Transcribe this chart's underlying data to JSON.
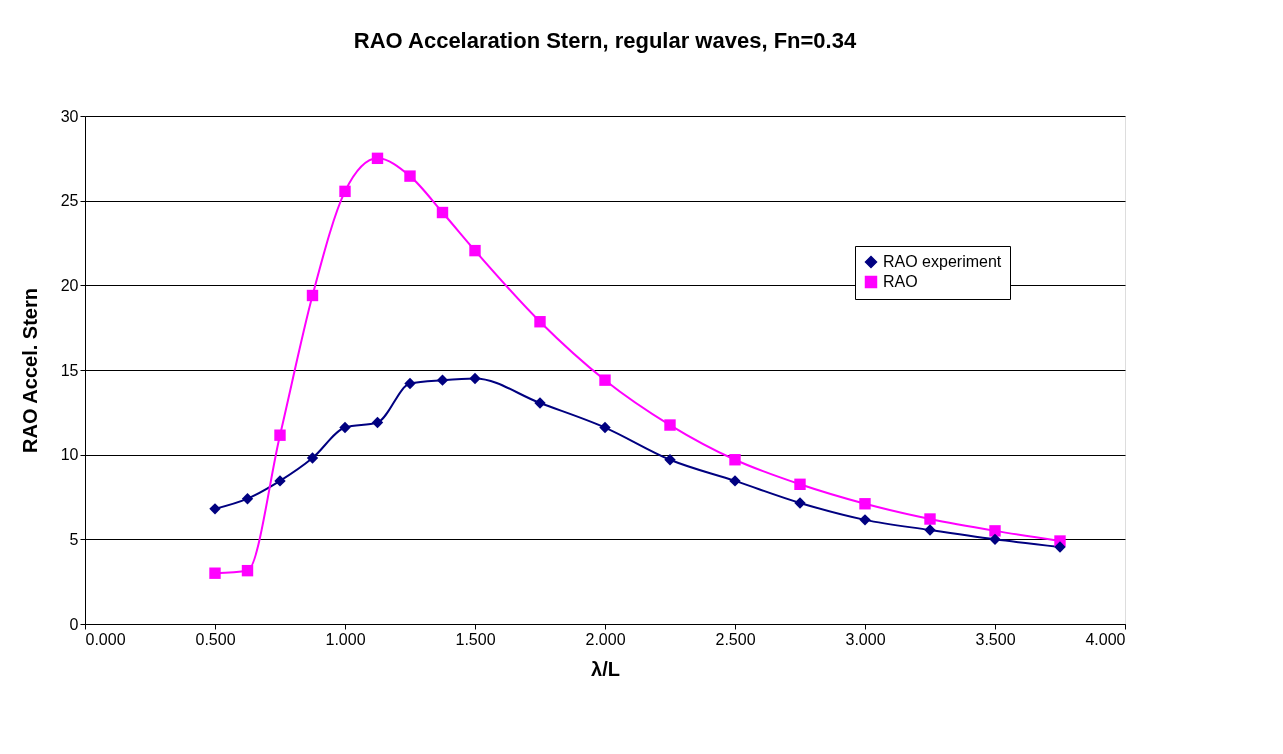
{
  "chart_data": {
    "type": "line",
    "title": "RAO Accelaration Stern, regular waves, Fn=0.34",
    "xlabel": "λ/L",
    "ylabel": "RAO Accel. Stern",
    "x": [
      0.5,
      0.625,
      0.75,
      0.875,
      1.0,
      1.125,
      1.25,
      1.375,
      1.5,
      1.75,
      2.0,
      2.25,
      2.5,
      2.75,
      3.0,
      3.25,
      3.5,
      3.75
    ],
    "series": [
      {
        "name": "RAO experiment",
        "color": "#000080",
        "marker": "diamond",
        "values": [
          6.8,
          7.4,
          8.45,
          9.8,
          11.6,
          11.9,
          14.2,
          14.4,
          14.5,
          13.05,
          11.6,
          9.7,
          8.45,
          7.15,
          6.15,
          5.55,
          5.0,
          4.55
        ]
      },
      {
        "name": "RAO",
        "color": "#ff00ff",
        "marker": "square",
        "values": [
          3.0,
          3.15,
          11.15,
          19.4,
          25.55,
          27.5,
          26.45,
          24.3,
          22.05,
          17.85,
          14.4,
          11.75,
          9.7,
          8.25,
          7.1,
          6.2,
          5.5,
          4.9
        ]
      }
    ],
    "xlim": [
      0,
      4
    ],
    "xticks": [
      {
        "value": 0,
        "label": "0.000"
      },
      {
        "value": 0.5,
        "label": "0.500"
      },
      {
        "value": 1,
        "label": "1.000"
      },
      {
        "value": 1.5,
        "label": "1.500"
      },
      {
        "value": 2,
        "label": "2.000"
      },
      {
        "value": 2.5,
        "label": "2.500"
      },
      {
        "value": 3,
        "label": "3.000"
      },
      {
        "value": 3.5,
        "label": "3.500"
      },
      {
        "value": 4,
        "label": "4.000"
      }
    ],
    "ylim": [
      0,
      30
    ],
    "yticks": [
      0,
      5,
      10,
      15,
      20,
      25,
      30
    ],
    "grid": "y",
    "legend": "right",
    "line_style": "solid"
  }
}
